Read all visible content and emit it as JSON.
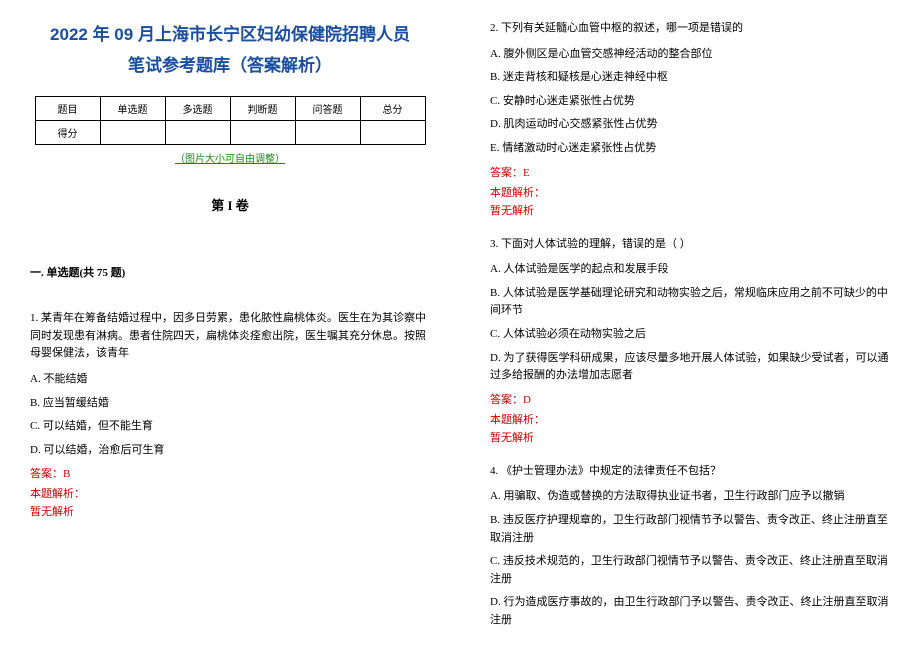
{
  "title_line1": "2022 年 09 月上海市长宁区妇幼保健院招聘人员",
  "title_line2": "笔试参考题库（答案解析）",
  "score_table": {
    "headers": [
      "题目",
      "单选题",
      "多选题",
      "判断题",
      "问答题",
      "总分"
    ],
    "row_label": "得分"
  },
  "image_note": "（图片大小可自由调整）",
  "volume_title": "第 I 卷",
  "section_title": "一. 单选题(共 75 题)",
  "q1": {
    "stem": "1. 某青年在筹备结婚过程中，因多日劳累，患化脓性扁桃体炎。医生在为其诊察中同时发现患有淋病。患者住院四天，扁桃体炎痊愈出院，医生嘱其充分休息。按照母婴保健法，该青年",
    "a": "A. 不能结婚",
    "b": "B. 应当暂缓结婚",
    "c": "C. 可以结婚，但不能生育",
    "d": "D. 可以结婚，治愈后可生育",
    "answer": "答案：B",
    "analysis_label": "本题解析：",
    "analysis": "暂无解析"
  },
  "q2": {
    "stem": "2. 下列有关延髓心血管中枢的叙述，哪一项是错误的",
    "a": "A. 腹外侧区是心血管交感神经活动的整合部位",
    "b": "B. 迷走背核和疑核是心迷走神经中枢",
    "c": "C. 安静时心迷走紧张性占优势",
    "d": "D. 肌肉运动时心交感紧张性占优势",
    "e": "E. 情绪激动时心迷走紧张性占优势",
    "answer": "答案：E",
    "analysis_label": "本题解析：",
    "analysis": "暂无解析"
  },
  "q3": {
    "stem": "3. 下面对人体试验的理解，错误的是（  ）",
    "a": "A. 人体试验是医学的起点和发展手段",
    "b": "B. 人体试验是医学基础理论研究和动物实验之后，常规临床应用之前不可缺少的中间环节",
    "c": "C. 人体试验必须在动物实验之后",
    "d": "D. 为了获得医学科研成果，应该尽量多地开展人体试验，如果缺少受试者，可以通过多给报酬的办法增加志愿者",
    "answer": "答案：D",
    "analysis_label": "本题解析：",
    "analysis": "暂无解析"
  },
  "q4": {
    "stem": "4. 《护士管理办法》中规定的法律责任不包括？",
    "a": "A. 用骗取、伪造或替换的方法取得执业证书者，卫生行政部门应予以撤销",
    "b": "B. 违反医疗护理规章的，卫生行政部门视情节予以警告、责令改正、终止注册直至取消注册",
    "c": "C. 违反技术规范的，卫生行政部门视情节予以警告、责令改正、终止注册直至取消注册",
    "d": "D. 行为造成医疗事故的，由卫生行政部门予以警告、责令改正、终止注册直至取消注册"
  }
}
